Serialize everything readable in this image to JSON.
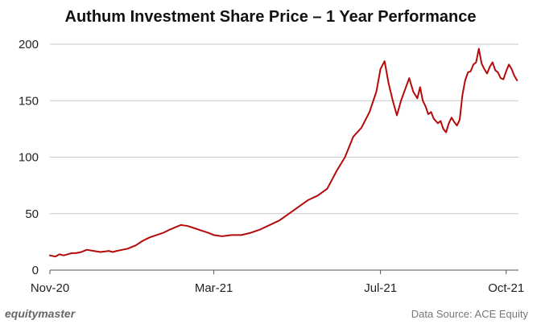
{
  "footer": {
    "brand": "equitymaster",
    "source": "Data Source: ACE Equity"
  },
  "colors": {
    "line": "#b40a0a",
    "grid": "#c8c8c8",
    "axis": "#555555"
  },
  "chart_data": {
    "type": "line",
    "title": "Authum Investment Share Price – 1 Year Performance",
    "xlabel": "",
    "ylabel": "",
    "x_ticks": [
      "Nov-20",
      "Mar-21",
      "Jul-21",
      "Oct-21"
    ],
    "x_tick_dates": [
      "2020-11-01",
      "2021-03-01",
      "2021-07-01",
      "2021-10-01"
    ],
    "x_range": [
      "2020-11-01",
      "2021-10-10"
    ],
    "y_ticks": [
      0,
      50,
      100,
      150,
      200
    ],
    "ylim": [
      0,
      200
    ],
    "grid": "horizontal",
    "legend": "none",
    "series": [
      {
        "x": [
          "2020-11-01",
          "2020-11-05",
          "2020-11-08",
          "2020-11-11",
          "2020-11-14",
          "2020-11-17",
          "2020-11-20",
          "2020-11-24",
          "2020-11-28",
          "2020-12-03",
          "2020-12-08",
          "2020-12-14",
          "2020-12-17",
          "2020-12-20",
          "2020-12-24",
          "2020-12-28",
          "2021-01-03",
          "2021-01-08",
          "2021-01-13",
          "2021-01-18",
          "2021-01-23",
          "2021-01-28",
          "2021-02-01",
          "2021-02-05",
          "2021-02-10",
          "2021-02-15",
          "2021-02-20",
          "2021-02-25",
          "2021-03-01",
          "2021-03-07",
          "2021-03-14",
          "2021-03-21",
          "2021-03-28",
          "2021-04-04",
          "2021-04-11",
          "2021-04-18",
          "2021-04-25",
          "2021-05-02",
          "2021-05-09",
          "2021-05-16",
          "2021-05-23",
          "2021-05-30",
          "2021-06-05",
          "2021-06-11",
          "2021-06-17",
          "2021-06-23",
          "2021-06-28",
          "2021-07-01",
          "2021-07-04",
          "2021-07-07",
          "2021-07-10",
          "2021-07-13",
          "2021-07-16",
          "2021-07-19",
          "2021-07-22",
          "2021-07-25",
          "2021-07-28",
          "2021-07-30",
          "2021-08-01",
          "2021-08-03",
          "2021-08-05",
          "2021-08-07",
          "2021-08-09",
          "2021-08-12",
          "2021-08-14",
          "2021-08-16",
          "2021-08-18",
          "2021-08-20",
          "2021-08-22",
          "2021-08-24",
          "2021-08-26",
          "2021-08-28",
          "2021-08-30",
          "2021-09-01",
          "2021-09-03",
          "2021-09-05",
          "2021-09-07",
          "2021-09-09",
          "2021-09-11",
          "2021-09-13",
          "2021-09-15",
          "2021-09-17",
          "2021-09-19",
          "2021-09-21",
          "2021-09-23",
          "2021-09-25",
          "2021-09-27",
          "2021-09-29",
          "2021-10-01",
          "2021-10-03",
          "2021-10-05",
          "2021-10-07",
          "2021-10-09"
        ],
        "values": [
          13,
          12,
          14,
          13,
          14,
          15,
          15,
          16,
          18,
          17,
          16,
          17,
          16,
          17,
          18,
          19,
          22,
          26,
          29,
          31,
          33,
          36,
          38,
          40,
          39,
          37,
          35,
          33,
          31,
          30,
          31,
          31,
          33,
          36,
          40,
          44,
          50,
          56,
          62,
          66,
          72,
          88,
          100,
          118,
          126,
          140,
          158,
          178,
          185,
          165,
          150,
          137,
          150,
          160,
          170,
          158,
          152,
          162,
          150,
          145,
          138,
          140,
          134,
          130,
          132,
          125,
          122,
          130,
          135,
          131,
          128,
          133,
          155,
          168,
          175,
          176,
          182,
          184,
          196,
          183,
          178,
          174,
          180,
          184,
          177,
          175,
          170,
          169,
          176,
          182,
          178,
          172,
          168
        ]
      }
    ]
  }
}
